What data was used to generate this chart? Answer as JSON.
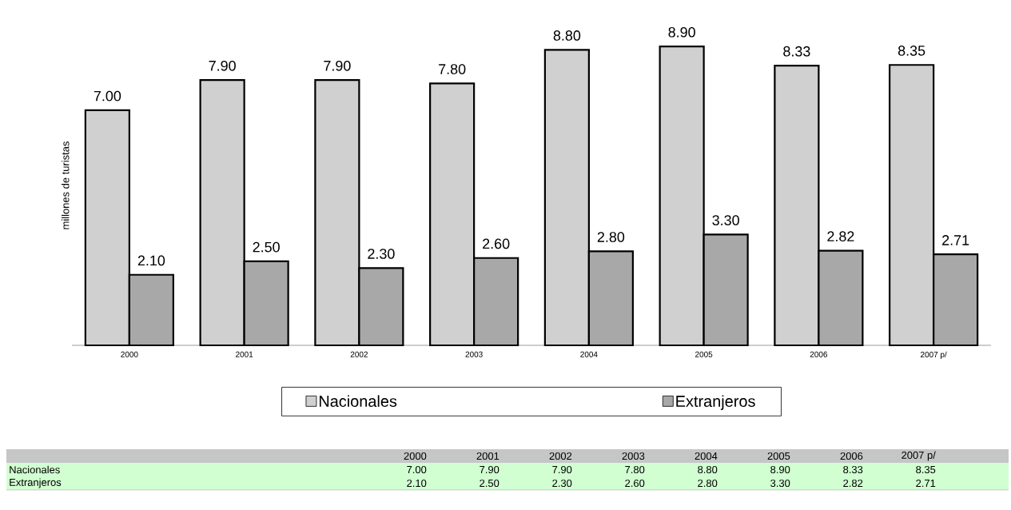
{
  "chart_data": {
    "type": "bar",
    "ylabel": "millones de turistas",
    "categories": [
      "2000",
      "2001",
      "2002",
      "2003",
      "2004",
      "2005",
      "2006",
      "2007 p/"
    ],
    "series": [
      {
        "name": "Nacionales",
        "color": "#d0d0d0",
        "values": [
          7.0,
          7.9,
          7.9,
          7.8,
          8.8,
          8.9,
          8.33,
          8.35
        ],
        "value_labels": [
          "7.00",
          "7.90",
          "7.90",
          "7.80",
          "8.80",
          "8.90",
          "8.33",
          "8.35"
        ]
      },
      {
        "name": "Extranjeros",
        "color": "#a8a8a8",
        "values": [
          2.1,
          2.5,
          2.3,
          2.6,
          2.8,
          3.3,
          2.82,
          2.71
        ],
        "value_labels": [
          "2.10",
          "2.50",
          "2.30",
          "2.60",
          "2.80",
          "3.30",
          "2.82",
          "2.71"
        ]
      }
    ],
    "data_labels": true,
    "legend": "bottom"
  }
}
